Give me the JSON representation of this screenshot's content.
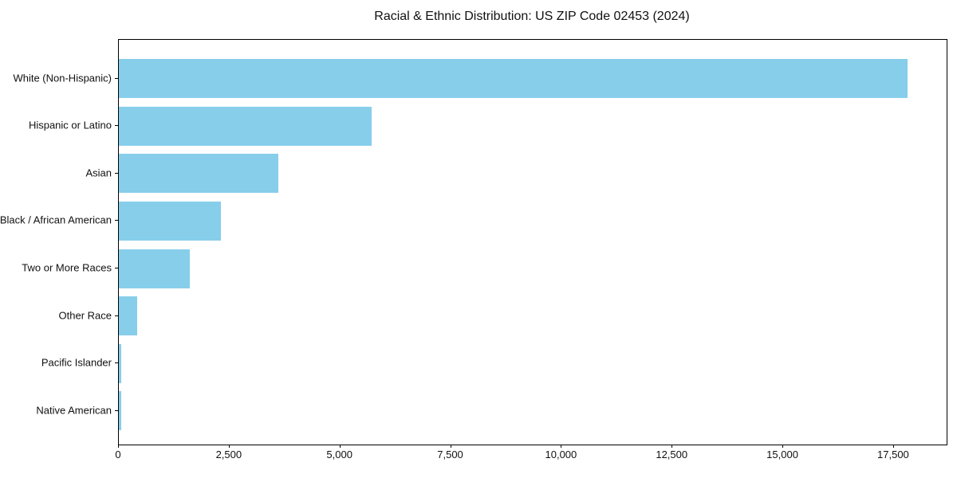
{
  "chart_data": {
    "type": "bar",
    "orientation": "horizontal",
    "title": "Racial & Ethnic Distribution: US ZIP Code 02453 (2024)",
    "xlabel": "",
    "ylabel": "",
    "categories": [
      "White (Non-Hispanic)",
      "Hispanic or Latino",
      "Asian",
      "Black / African American",
      "Two or More Races",
      "Other Race",
      "Pacific Islander",
      "Native American"
    ],
    "values": [
      17800,
      5700,
      3600,
      2300,
      1600,
      420,
      60,
      50
    ],
    "xlim": [
      0,
      18690
    ],
    "x_ticks": [
      {
        "value": 0,
        "label": "0"
      },
      {
        "value": 2500,
        "label": "2,500"
      },
      {
        "value": 5000,
        "label": "5,000"
      },
      {
        "value": 7500,
        "label": "7,500"
      },
      {
        "value": 10000,
        "label": "10,000"
      },
      {
        "value": 12500,
        "label": "12,500"
      },
      {
        "value": 15000,
        "label": "15,000"
      },
      {
        "value": 17500,
        "label": "17,500"
      }
    ],
    "bar_color": "#87ceeb",
    "spine_color": "#000000",
    "text_color": "#111111",
    "background_color": "#ffffff",
    "grid": false,
    "legend": null
  }
}
